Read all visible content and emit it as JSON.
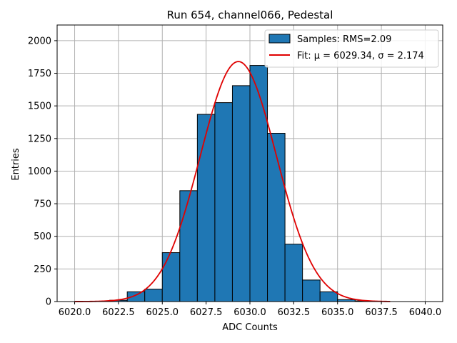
{
  "chart_data": {
    "type": "bar",
    "title": "Run 654, channel066, Pedestal",
    "xlabel": "ADC Counts",
    "ylabel": "Entries",
    "xlim": [
      6019,
      6041
    ],
    "ylim": [
      0,
      2120
    ],
    "xticks": [
      6020,
      6022.5,
      6025,
      6027.5,
      6030,
      6032.5,
      6035,
      6037.5,
      6040
    ],
    "xtick_labels": [
      "6020.0",
      "6022.5",
      "6025.0",
      "6027.5",
      "6030.0",
      "6032.5",
      "6035.0",
      "6037.5",
      "6040.0"
    ],
    "yticks": [
      0,
      250,
      500,
      750,
      1000,
      1250,
      1500,
      1750,
      2000
    ],
    "ytick_labels": [
      "0",
      "250",
      "500",
      "750",
      "1000",
      "1250",
      "1500",
      "1750",
      "2000"
    ],
    "grid": true,
    "bins": [
      {
        "x0": 6022,
        "x1": 6023,
        "count": 10
      },
      {
        "x0": 6023,
        "x1": 6024,
        "count": 75
      },
      {
        "x0": 6024,
        "x1": 6025,
        "count": 95
      },
      {
        "x0": 6025,
        "x1": 6026,
        "count": 375
      },
      {
        "x0": 6026,
        "x1": 6027,
        "count": 850
      },
      {
        "x0": 6027,
        "x1": 6028,
        "count": 1435
      },
      {
        "x0": 6028,
        "x1": 6029,
        "count": 1525
      },
      {
        "x0": 6029,
        "x1": 6030,
        "count": 1655
      },
      {
        "x0": 6030,
        "x1": 6031,
        "count": 1810
      },
      {
        "x0": 6031,
        "x1": 6032,
        "count": 1290
      },
      {
        "x0": 6032,
        "x1": 6033,
        "count": 440
      },
      {
        "x0": 6033,
        "x1": 6034,
        "count": 165
      },
      {
        "x0": 6034,
        "x1": 6035,
        "count": 75
      },
      {
        "x0": 6035,
        "x1": 6036,
        "count": 15
      },
      {
        "x0": 6036,
        "x1": 6037,
        "count": 5
      }
    ],
    "fit": {
      "mu": 6029.34,
      "sigma": 2.174,
      "amplitude": 1840,
      "x_range": [
        6020,
        6038
      ]
    },
    "legend": {
      "position": "top-right",
      "entries": [
        {
          "label": "Samples: RMS=2.09",
          "kind": "patch"
        },
        {
          "label": "Fit: μ = 6029.34, σ = 2.174",
          "kind": "line"
        }
      ]
    },
    "colors": {
      "bar_fill": "#1f77b4",
      "bar_edge": "#000000",
      "fit_line": "#e00000",
      "grid": "#b0b0b0"
    }
  }
}
